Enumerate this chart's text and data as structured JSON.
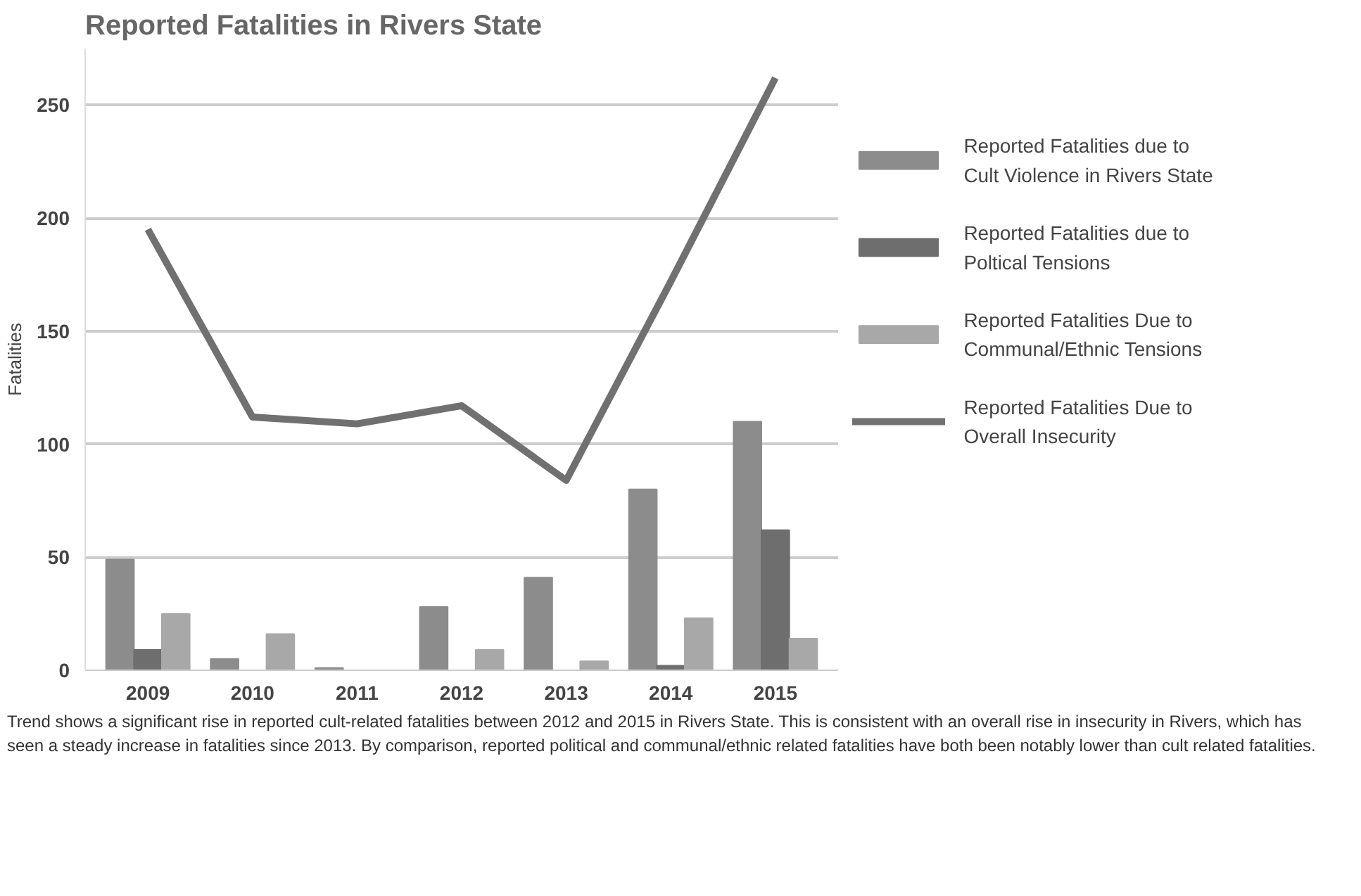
{
  "chart_data": {
    "type": "bar",
    "title": "Reported Fatalities in Rivers State",
    "ylabel": "Fatalities",
    "categories": [
      "2009",
      "2010",
      "2011",
      "2012",
      "2013",
      "2014",
      "2015"
    ],
    "series": [
      {
        "name": "Reported Fatalities due to Cult Violence in Rivers State",
        "color": "#8c8c8c",
        "values": [
          49,
          5,
          1,
          28,
          41,
          80,
          110
        ]
      },
      {
        "name": "Reported Fatalities due to Poltical Tensions",
        "color": "#6e6e6e",
        "values": [
          9,
          0,
          0,
          0,
          0,
          2,
          62
        ]
      },
      {
        "name": "Reported Fatalities Due to Communal/Ethnic Tensions",
        "color": "#a8a8a8",
        "values": [
          25,
          16,
          0,
          9,
          4,
          23,
          14
        ]
      },
      {
        "name": "Reported Fatalities Due to Overall Insecurity",
        "type": "line",
        "color": "#707070",
        "values": [
          195,
          112,
          109,
          117,
          84,
          172,
          262
        ]
      }
    ],
    "ylim": [
      0,
      275
    ],
    "yticks": [
      0,
      50,
      100,
      150,
      200,
      250
    ],
    "grid": "y",
    "legend": "right",
    "annotations": [
      "Trend shows  a significant rise in reported cult-related fatalities between 2012 and 2015 in Rivers State. This is consistent with an overall rise in insecurity in Rivers, which has seen a steady increase in fatalities since 2013. By comparison, reported political and communal/ethnic related fatalities have both been notably lower than cult related fatalities."
    ]
  }
}
